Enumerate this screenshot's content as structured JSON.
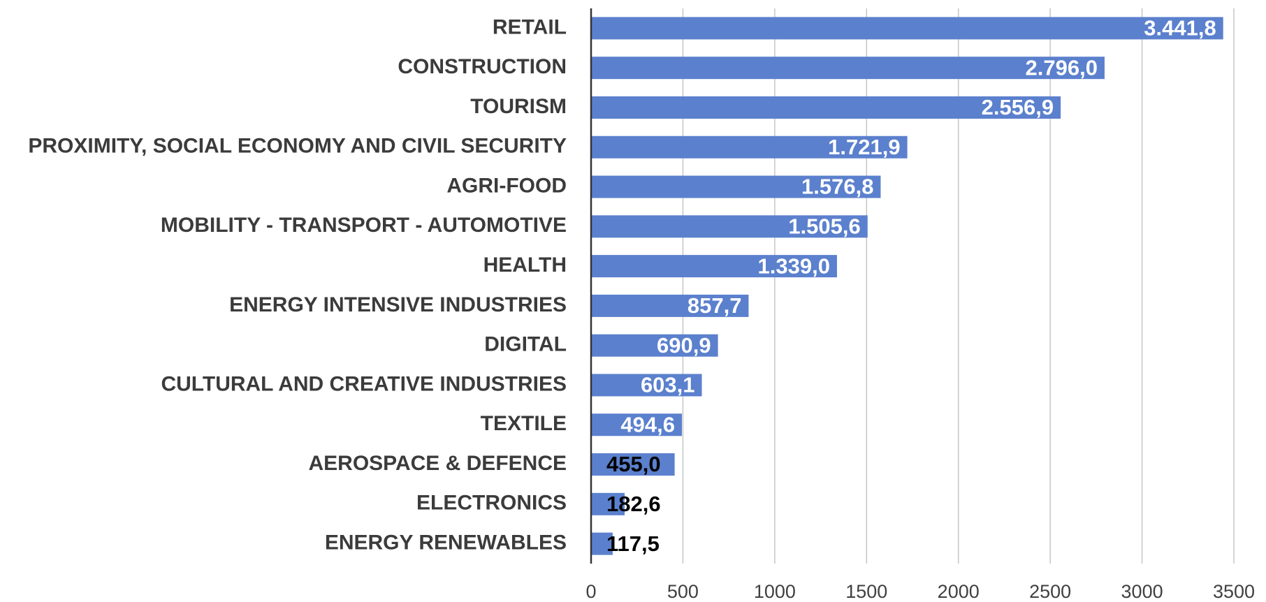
{
  "chart_data": {
    "type": "hbar",
    "color": "#5b80cd",
    "grid": true,
    "categories": [
      "RETAIL",
      "CONSTRUCTION",
      "TOURISM",
      "PROXIMITY, SOCIAL ECONOMY AND CIVIL SECURITY",
      "AGRI-FOOD",
      "MOBILITY - TRANSPORT - AUTOMOTIVE",
      "HEALTH",
      "ENERGY INTENSIVE INDUSTRIES",
      "DIGITAL",
      "CULTURAL AND CREATIVE INDUSTRIES",
      "TEXTILE",
      "AEROSPACE & DEFENCE",
      "ELECTRONICS",
      "ENERGY RENEWABLES"
    ],
    "values": [
      3441.8,
      2796.0,
      2556.9,
      1721.9,
      1576.8,
      1505.6,
      1339.0,
      857.7,
      690.9,
      603.1,
      494.6,
      455.0,
      182.6,
      117.5
    ],
    "value_labels": [
      "3.441,8",
      "2.796,0",
      "2.556,9",
      "1.721,9",
      "1.576,8",
      "1.505,6",
      "1.339,0",
      "857,7",
      "690,9",
      "603,1",
      "494,6",
      "455,0",
      "182,6",
      "117,5"
    ],
    "xlim": [
      0,
      3500
    ],
    "xticks": [
      0,
      500,
      1000,
      1500,
      2000,
      2500,
      3000,
      3500
    ]
  }
}
